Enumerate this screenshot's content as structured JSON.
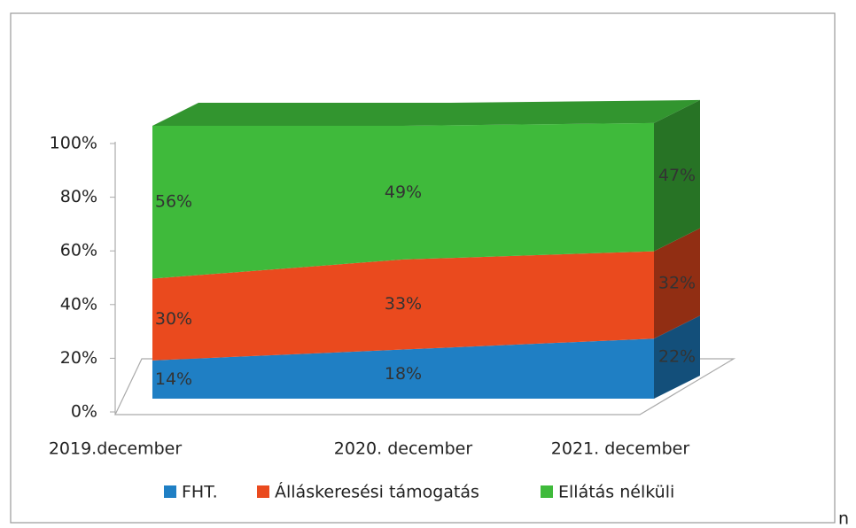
{
  "chart_data": {
    "type": "area3d_stacked",
    "categories": [
      "2019.december",
      "2020. december",
      "2021. december"
    ],
    "series": [
      {
        "name": "FHT.",
        "color": "#1f7fc4",
        "values": [
          14,
          18,
          22
        ],
        "value_labels": [
          "14%",
          "18%",
          "22%"
        ]
      },
      {
        "name": "Álláskeresési támogatás",
        "color": "#ea4a1e",
        "values": [
          30,
          33,
          32
        ],
        "value_labels": [
          "30%",
          "33%",
          "32%"
        ]
      },
      {
        "name": "Ellátás nélküli",
        "color": "#3fba3b",
        "values": [
          56,
          49,
          47
        ],
        "value_labels": [
          "56%",
          "49%",
          "47%"
        ]
      }
    ],
    "ylim": [
      0,
      100
    ],
    "yticks": [
      {
        "value": 0,
        "label": "0%"
      },
      {
        "value": 20,
        "label": "20%"
      },
      {
        "value": 40,
        "label": "40%"
      },
      {
        "value": 60,
        "label": "60%"
      },
      {
        "value": 80,
        "label": "80%"
      },
      {
        "value": 100,
        "label": "100%"
      }
    ],
    "legend": "bottom",
    "fragment": "n"
  }
}
